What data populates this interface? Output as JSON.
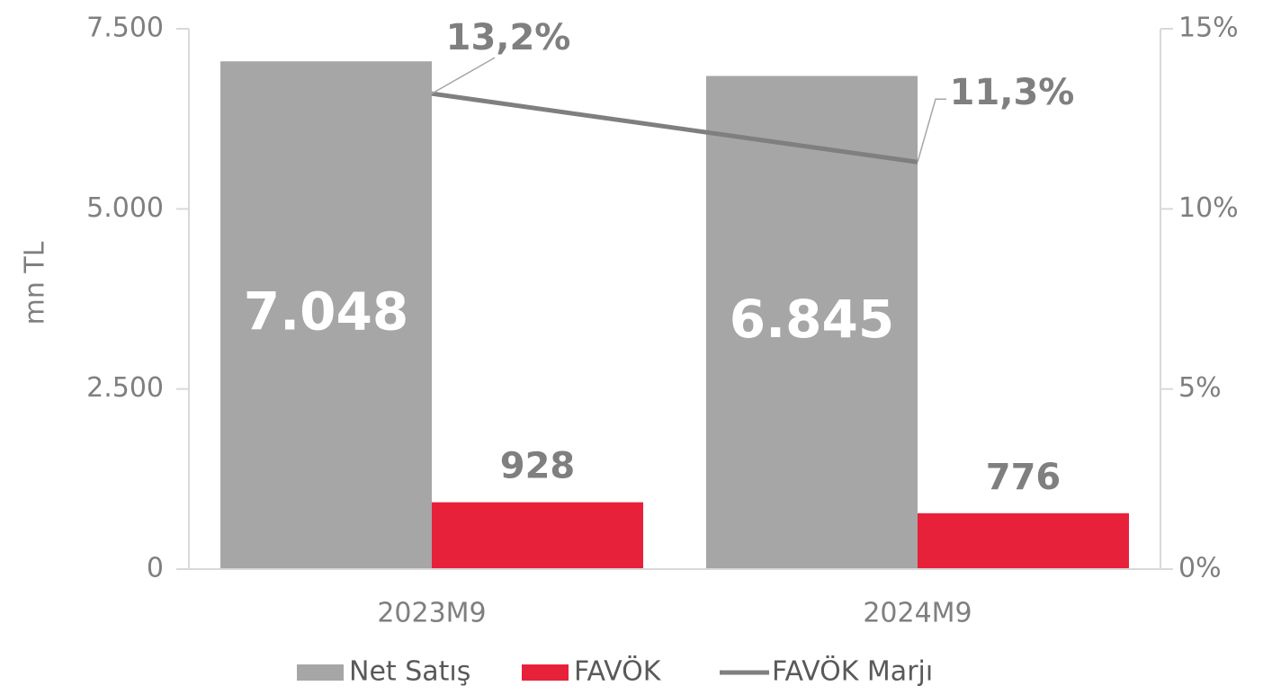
{
  "chart_data": {
    "type": "bar",
    "categories": [
      "2023M9",
      "2024M9"
    ],
    "ylabel": "mn TL",
    "ylim": [
      0,
      7500
    ],
    "yticks": [
      {
        "value": 0,
        "label": "0"
      },
      {
        "value": 2500,
        "label": "2.500"
      },
      {
        "value": 5000,
        "label": "5.000"
      },
      {
        "value": 7500,
        "label": "7.500"
      }
    ],
    "y2lim": [
      0,
      15
    ],
    "y2ticks": [
      {
        "value": 0,
        "label": "0%"
      },
      {
        "value": 5,
        "label": "5%"
      },
      {
        "value": 10,
        "label": "10%"
      },
      {
        "value": 15,
        "label": "15%"
      }
    ],
    "series": [
      {
        "name": "Net Satış",
        "type": "bar",
        "color": "#a6a6a6",
        "values": [
          7048,
          6845
        ],
        "value_labels": [
          "7.048",
          "6.845"
        ]
      },
      {
        "name": "FAVÖK",
        "type": "bar",
        "color": "#e8213a",
        "values": [
          928,
          776
        ]
      },
      {
        "name": "FAVÖK Marjı",
        "type": "line",
        "axis": "y2",
        "color": "#7f7f7f",
        "values": [
          13.2,
          11.3
        ],
        "value_labels": [
          "13,2%",
          "11,3%"
        ]
      }
    ],
    "legend": "bottom",
    "grid": false
  }
}
